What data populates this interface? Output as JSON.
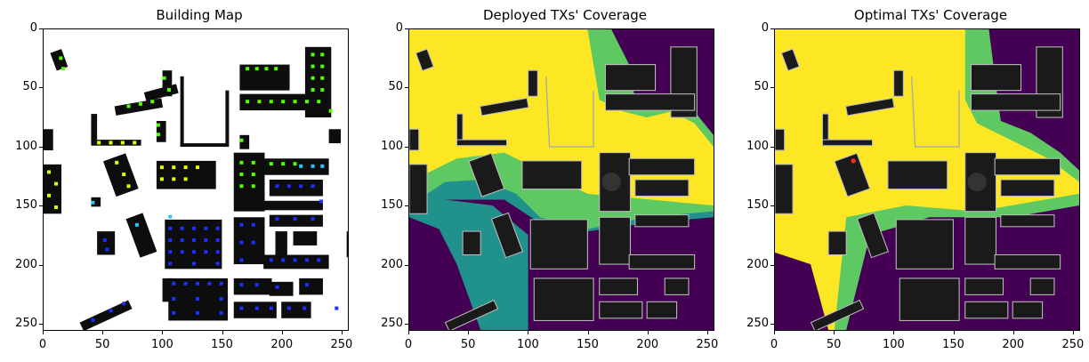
{
  "panels": [
    {
      "title": "Building Map"
    },
    {
      "title": "Deployed TXs' Coverage"
    },
    {
      "title": "Optimal TXs' Coverage"
    }
  ],
  "axes": {
    "xticks": [
      "0",
      "50",
      "100",
      "150",
      "200",
      "250"
    ],
    "yticks": [
      "0",
      "50",
      "100",
      "150",
      "200",
      "250"
    ],
    "xlim": [
      0,
      256
    ],
    "ylim": [
      256,
      0
    ]
  },
  "colors": {
    "background_map": "#ffffff",
    "building": "#0d0d0d",
    "building_fill": "#222222",
    "coverage_high": "#fde725",
    "coverage_mid": "#5ec962",
    "coverage_teal": "#21918c",
    "coverage_low": "#440154",
    "tx_green": "#53ff00",
    "tx_yellow": "#e8ff00",
    "tx_blue": "#1a30ff",
    "tx_cyan": "#28c8ff",
    "tx_red": "#ff2a2a"
  }
}
